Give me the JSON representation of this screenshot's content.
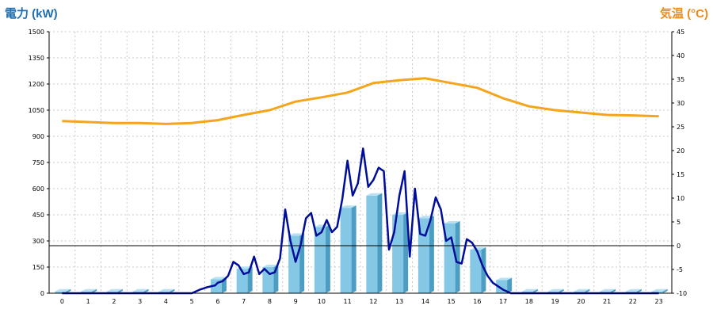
{
  "chart_data": {
    "type": "bar",
    "left_axis_label": "電力 (kW)",
    "right_axis_label": "気温 (°C)",
    "left_ylim": [
      0,
      1500
    ],
    "right_ylim": [
      -10,
      45
    ],
    "left_ticks": [
      0,
      150,
      300,
      450,
      600,
      750,
      900,
      1050,
      1200,
      1350,
      1500
    ],
    "right_ticks": [
      -10,
      -5,
      0,
      5,
      10,
      15,
      20,
      25,
      30,
      35,
      40,
      45
    ],
    "categories": [
      "0",
      "1",
      "2",
      "3",
      "4",
      "5",
      "6",
      "7",
      "8",
      "9",
      "10",
      "11",
      "12",
      "13",
      "14",
      "15",
      "16",
      "17",
      "18",
      "19",
      "20",
      "21",
      "22",
      "23"
    ],
    "grid": true,
    "series": [
      {
        "kind": "bar",
        "axis": "left",
        "values": [
          10,
          10,
          10,
          10,
          10,
          0,
          80,
          140,
          150,
          330,
          380,
          490,
          560,
          450,
          430,
          400,
          250,
          75,
          10,
          10,
          10,
          10,
          10,
          10
        ]
      },
      {
        "kind": "line",
        "axis": "left",
        "x": [
          0,
          0.5,
          1,
          1.5,
          2,
          2.5,
          3,
          3.5,
          4,
          4.5,
          5,
          5.3,
          5.6,
          5.9,
          6,
          6.2,
          6.4,
          6.6,
          6.8,
          7,
          7.2,
          7.4,
          7.6,
          7.8,
          8,
          8.2,
          8.4,
          8.6,
          8.8,
          9,
          9.2,
          9.4,
          9.6,
          9.8,
          10,
          10.2,
          10.4,
          10.6,
          10.8,
          11,
          11.2,
          11.4,
          11.6,
          11.8,
          12,
          12.2,
          12.4,
          12.6,
          12.8,
          13,
          13.2,
          13.4,
          13.6,
          13.8,
          14,
          14.2,
          14.4,
          14.6,
          14.8,
          15,
          15.2,
          15.4,
          15.6,
          15.8,
          16,
          16.2,
          16.4,
          16.6,
          16.8,
          17,
          17.3,
          17.6,
          18,
          19,
          20,
          21,
          22,
          23
        ],
        "values": [
          0,
          0,
          0,
          0,
          0,
          0,
          0,
          0,
          0,
          0,
          0,
          20,
          35,
          45,
          60,
          70,
          100,
          180,
          160,
          110,
          120,
          210,
          110,
          140,
          110,
          120,
          200,
          480,
          300,
          180,
          280,
          430,
          460,
          330,
          350,
          420,
          350,
          380,
          540,
          760,
          560,
          630,
          830,
          610,
          650,
          720,
          700,
          250,
          350,
          560,
          700,
          210,
          600,
          340,
          330,
          420,
          550,
          480,
          300,
          320,
          180,
          170,
          310,
          290,
          240,
          160,
          100,
          60,
          40,
          20,
          0,
          0,
          0,
          0,
          0,
          0,
          0,
          0
        ]
      },
      {
        "kind": "line",
        "axis": "right",
        "x": [
          0,
          1,
          2,
          3,
          4,
          5,
          6,
          7,
          8,
          9,
          10,
          11,
          12,
          13,
          14,
          15,
          16,
          17,
          18,
          19,
          20,
          21,
          22,
          23
        ],
        "values": [
          26.2,
          26.0,
          25.8,
          25.8,
          25.6,
          25.8,
          26.4,
          27.5,
          28.5,
          30.3,
          31.2,
          32.2,
          34.2,
          34.8,
          35.2,
          34.2,
          33.2,
          31.0,
          29.3,
          28.5,
          28.0,
          27.5,
          27.4,
          27.2
        ]
      }
    ],
    "colors": {
      "bar_front": "#85c8e6",
      "bar_side": "#4b9ec2",
      "bar_top": "#b8e2f4",
      "power_line": "#000d99",
      "temperature_line": "#f4a51c",
      "grid": "#c9c9c9",
      "axis": "#000000",
      "left_label": "#1f6fb0",
      "right_label": "#f08a1c"
    }
  }
}
